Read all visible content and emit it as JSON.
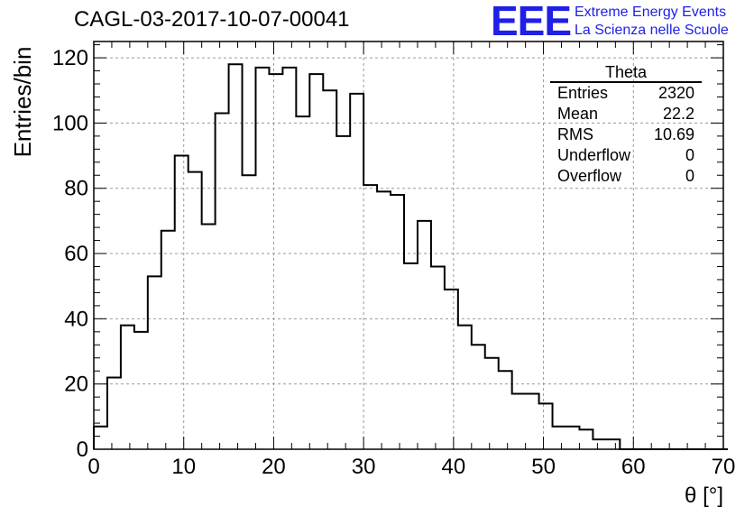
{
  "title": "CAGL-03-2017-10-07-00041",
  "logo": {
    "mark": "EEE",
    "line1": "Extreme Energy Events",
    "line2": "La Scienza nelle Scuole"
  },
  "stats": {
    "title": "Theta",
    "rows": [
      {
        "label": "Entries",
        "value": "2320"
      },
      {
        "label": "Mean",
        "value": "22.2"
      },
      {
        "label": "RMS",
        "value": "10.69"
      },
      {
        "label": "Underflow",
        "value": "0"
      },
      {
        "label": "Overflow",
        "value": "0"
      }
    ]
  },
  "chart_data": {
    "type": "bar",
    "histogram": true,
    "xlabel": "θ [°]",
    "ylabel": "Entries/bin",
    "xlim": [
      0,
      70
    ],
    "ylim": [
      0,
      125
    ],
    "xticks": [
      0,
      10,
      20,
      30,
      40,
      50,
      60,
      70
    ],
    "yticks": [
      0,
      20,
      40,
      60,
      80,
      100,
      120
    ],
    "grid": true,
    "bin_width": 1.5,
    "bin_edges_start": 0,
    "values": [
      7,
      22,
      38,
      36,
      53,
      67,
      90,
      85,
      69,
      103,
      118,
      84,
      117,
      115,
      117,
      102,
      115,
      110,
      96,
      109,
      81,
      79,
      78,
      57,
      70,
      56,
      49,
      38,
      32,
      28,
      24,
      17,
      17,
      14,
      7,
      7,
      6,
      3,
      3,
      0,
      0,
      0,
      0,
      0,
      0,
      0,
      0
    ]
  }
}
